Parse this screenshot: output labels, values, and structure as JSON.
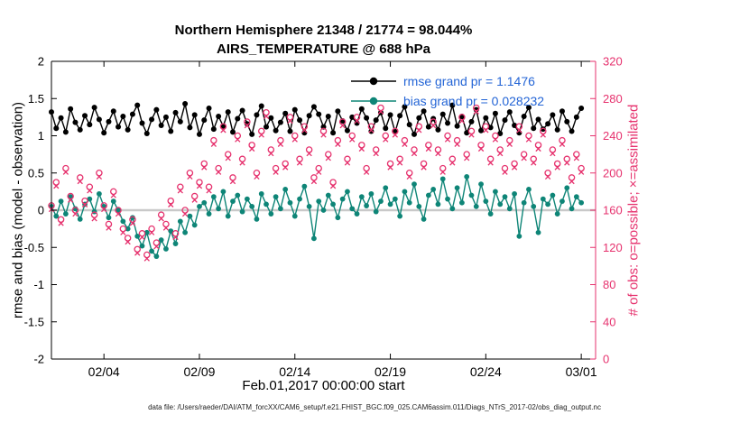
{
  "figure": {
    "footer": "data file: /Users/raeder/DAI/ATM_forcXX/CAM6_setup/f.e21.FHIST_BGC.f09_025.CAM6assim.011/Diags_NTrS_2017-02/obs_diag_output.nc",
    "colors": {
      "legend_text": "#2465d6",
      "obs": "#e6326e",
      "bias": "#0e8577",
      "rmse": "#000000",
      "zero_line": "#c9c9c9",
      "axis_black": "#000000"
    }
  },
  "chart_data": {
    "type": "line",
    "title": "Northern Hemisphere 21348 / 21774 = 98.044%",
    "subtitle": "AIRS_TEMPERATURE @ 688 hPa",
    "xlabel": "Feb.01,2017 00:00:00 start",
    "ylabel_left": "rmse and bias (model - observation)",
    "ylabel_right": "# of obs: o=possible; ×=assimilated",
    "legend_position": "top-center-inside",
    "grid": false,
    "x_axis": {
      "unit": "days since Feb 01, 2017 00:00",
      "min": 0.25,
      "max": 28.75,
      "start": 0.25,
      "step": 0.25,
      "tick_days": [
        3,
        8,
        13,
        18,
        23,
        28
      ],
      "tick_labels": [
        "02/04",
        "02/09",
        "02/14",
        "02/19",
        "02/24",
        "03/01"
      ]
    },
    "y_left": {
      "min": -2,
      "max": 2,
      "ticks": [
        -2,
        -1.5,
        -1,
        -0.5,
        0,
        0.5,
        1,
        1.5,
        2
      ]
    },
    "y_right": {
      "min": 0,
      "max": 320,
      "ticks": [
        0,
        40,
        80,
        120,
        160,
        200,
        240,
        280,
        320
      ]
    },
    "stats": {
      "possible_total": 21774,
      "assimilated_total": 21348,
      "assimilated_pct": 98.044,
      "rmse_grand_mean": 1.1476,
      "bias_grand_mean": 0.028232
    },
    "series": [
      {
        "name": "rmse",
        "legend": "rmse grand pr = 1.1476",
        "axis": "left",
        "color": "#000000",
        "marker": "filled-circle",
        "values": [
          1.32,
          1.1,
          1.24,
          1.05,
          1.36,
          1.18,
          1.08,
          1.27,
          1.15,
          1.38,
          1.22,
          1.04,
          1.19,
          1.33,
          1.12,
          1.26,
          1.08,
          1.29,
          1.41,
          1.17,
          1.03,
          1.22,
          1.35,
          1.14,
          1.25,
          1.06,
          1.31,
          1.19,
          1.43,
          1.11,
          1.28,
          1.02,
          1.21,
          1.37,
          1.09,
          1.26,
          1.13,
          1.32,
          1.05,
          1.23,
          1.34,
          1.16,
          1.02,
          1.28,
          1.4,
          1.12,
          1.24,
          1.07,
          1.18,
          1.3,
          1.06,
          1.35,
          1.21,
          1.04,
          1.27,
          1.39,
          1.29,
          1.12,
          1.26,
          1.04,
          1.33,
          1.2,
          1.07,
          1.25,
          1.17,
          1.36,
          1.24,
          1.06,
          1.21,
          1.31,
          1.1,
          1.28,
          1.05,
          1.27,
          1.39,
          1.15,
          1.02,
          1.24,
          1.33,
          1.12,
          1.23,
          1.08,
          1.29,
          1.17,
          1.41,
          1.13,
          1.26,
          1.04,
          1.19,
          1.35,
          1.07,
          1.24,
          1.11,
          1.3,
          1.03,
          1.21,
          1.32,
          1.14,
          1.04,
          1.26,
          1.38,
          1.1,
          1.22,
          1.09,
          1.16,
          1.28,
          1.08,
          1.33,
          1.19,
          1.06,
          1.25,
          1.37
        ]
      },
      {
        "name": "bias",
        "legend": "bias grand pr = 0.028232",
        "axis": "left",
        "color": "#0e8577",
        "marker": "filled-circle",
        "values": [
          0.05,
          -0.08,
          0.12,
          -0.05,
          0.18,
          0.02,
          -0.12,
          0.08,
          0.15,
          -0.02,
          0.22,
          0.05,
          -0.1,
          0.12,
          0.0,
          -0.15,
          -0.25,
          -0.1,
          -0.35,
          -0.48,
          -0.3,
          -0.55,
          -0.62,
          -0.4,
          -0.52,
          -0.28,
          -0.45,
          -0.15,
          -0.3,
          -0.08,
          -0.2,
          0.05,
          0.1,
          -0.05,
          0.18,
          0.02,
          0.25,
          -0.08,
          0.12,
          0.2,
          -0.02,
          0.15,
          0.05,
          -0.12,
          0.22,
          0.08,
          -0.05,
          0.18,
          0.02,
          0.28,
          0.1,
          -0.08,
          0.15,
          0.32,
          0.05,
          -0.38,
          0.12,
          0.0,
          0.2,
          0.08,
          -0.1,
          0.15,
          0.25,
          0.02,
          -0.05,
          0.18,
          0.06,
          0.22,
          -0.02,
          0.12,
          0.3,
          0.08,
          0.15,
          -0.08,
          0.25,
          0.1,
          0.35,
          0.05,
          -0.12,
          0.2,
          0.28,
          0.08,
          0.42,
          0.15,
          0.02,
          0.3,
          0.1,
          0.45,
          0.2,
          0.05,
          0.35,
          0.12,
          -0.05,
          0.25,
          0.08,
          0.18,
          0.02,
          0.22,
          -0.35,
          0.1,
          0.28,
          0.05,
          -0.3,
          0.15,
          0.08,
          0.2,
          -0.05,
          0.12,
          0.3,
          0.02,
          0.18,
          0.1
        ]
      },
      {
        "name": "possible_obs",
        "axis": "right",
        "color": "#e6326e",
        "marker": "open-circle",
        "values": [
          165,
          190,
          150,
          205,
          175,
          160,
          195,
          170,
          185,
          155,
          200,
          165,
          145,
          180,
          160,
          140,
          130,
          150,
          118,
          135,
          112,
          140,
          125,
          155,
          145,
          170,
          135,
          185,
          160,
          200,
          175,
          190,
          210,
          185,
          235,
          205,
          250,
          220,
          195,
          240,
          215,
          255,
          230,
          200,
          245,
          265,
          225,
          205,
          235,
          210,
          260,
          240,
          215,
          250,
          225,
          195,
          205,
          245,
          220,
          190,
          235,
          255,
          215,
          240,
          260,
          230,
          205,
          250,
          225,
          270,
          240,
          210,
          245,
          215,
          235,
          200,
          225,
          250,
          210,
          230,
          255,
          225,
          205,
          240,
          215,
          235,
          260,
          220,
          245,
          270,
          230,
          250,
          215,
          240,
          225,
          205,
          235,
          210,
          250,
          220,
          240,
          215,
          230,
          245,
          200,
          225,
          210,
          235,
          215,
          195,
          220,
          205
        ]
      },
      {
        "name": "assimilated_obs",
        "axis": "right",
        "color": "#e6326e",
        "marker": "x",
        "derived_from": "possible_obs",
        "offset": -4,
        "note": "assimilated ≈ possible − 4 per time (21774 − 21348 = 426 over 112 times)"
      }
    ]
  }
}
